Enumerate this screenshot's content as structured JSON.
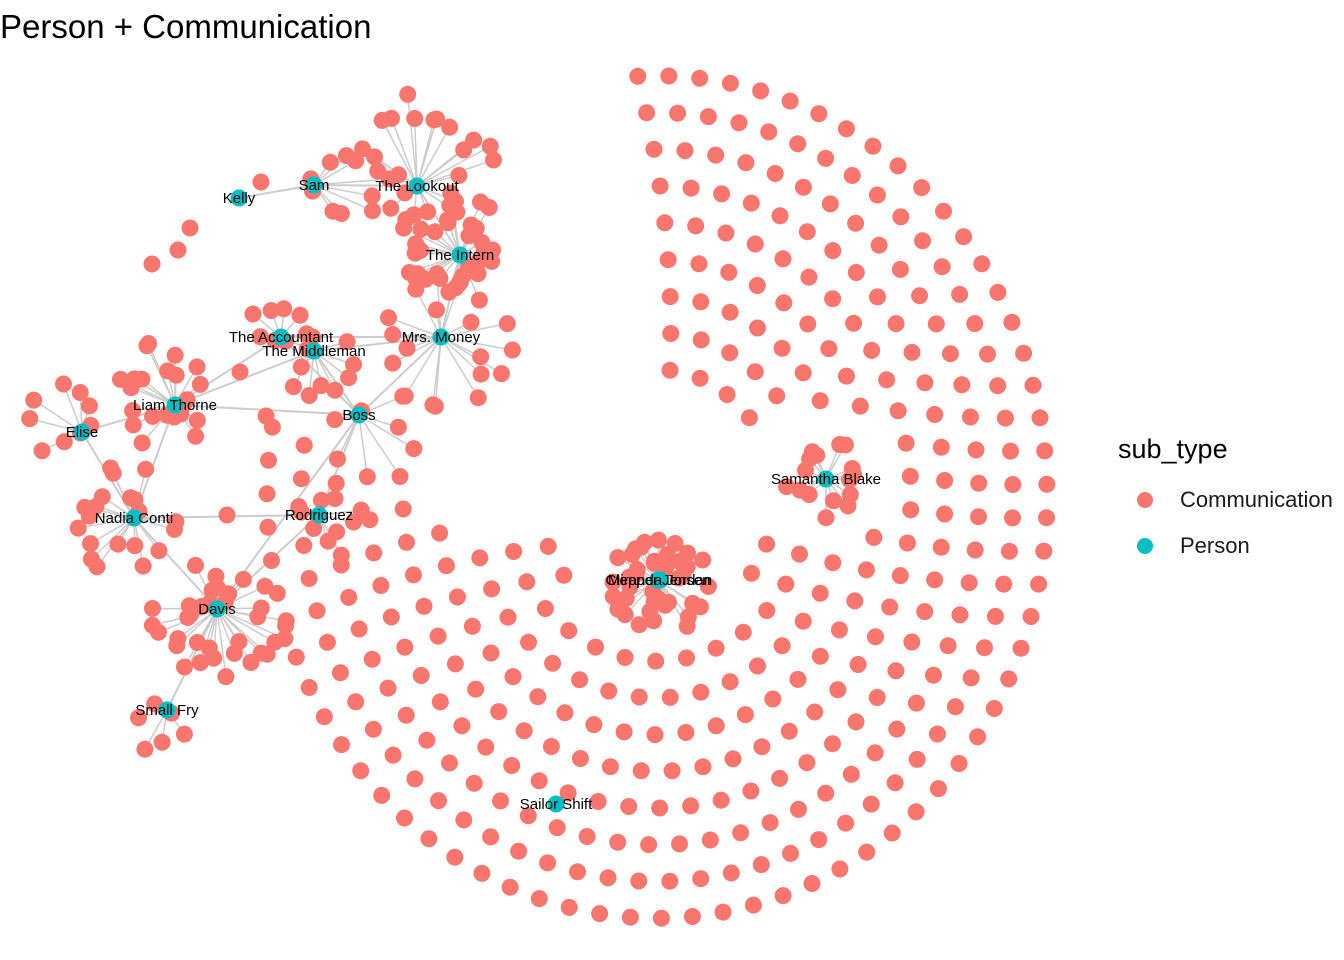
{
  "title": "Person + Communication",
  "legend": {
    "title": "sub_type",
    "items": [
      {
        "label": "Communication",
        "color": "#F8766D"
      },
      {
        "label": "Person",
        "color": "#00BFC4"
      }
    ]
  },
  "person_nodes": [
    "Kelly",
    "Sam",
    "The Lookout",
    "The Intern",
    "The Accountant",
    "The Middleman",
    "Mrs. Money",
    "Liam Thorne",
    "Elise",
    "Boss",
    "Nadia Conti",
    "Rodriguez",
    "Davis",
    "Small Fry",
    "Samantha Blake",
    "Clepper Jensen",
    "Miranda Jordan",
    "Sailor Shift"
  ],
  "person_edges": [
    [
      "Kelly",
      "Sam"
    ],
    [
      "Sam",
      "The Lookout"
    ],
    [
      "The Lookout",
      "The Intern"
    ],
    [
      "The Intern",
      "Mrs. Money"
    ],
    [
      "Mrs. Money",
      "The Middleman"
    ],
    [
      "Mrs. Money",
      "The Accountant"
    ],
    [
      "Mrs. Money",
      "Boss"
    ],
    [
      "The Accountant",
      "The Middleman"
    ],
    [
      "The Accountant",
      "Liam Thorne"
    ],
    [
      "The Middleman",
      "Boss"
    ],
    [
      "Liam Thorne",
      "Boss"
    ],
    [
      "Liam Thorne",
      "Elise"
    ],
    [
      "Liam Thorne",
      "Nadia Conti"
    ],
    [
      "Elise",
      "Nadia Conti"
    ],
    [
      "Nadia Conti",
      "Rodriguez"
    ],
    [
      "Nadia Conti",
      "Davis"
    ],
    [
      "Boss",
      "Rodriguez"
    ],
    [
      "Boss",
      "Davis"
    ],
    [
      "Rodriguez",
      "Davis"
    ],
    [
      "Davis",
      "Small Fry"
    ],
    [
      "Clepper Jensen",
      "Miranda Jordan"
    ],
    [
      "The Accountant",
      "Boss"
    ],
    [
      "Liam Thorne",
      "The Middleman"
    ]
  ],
  "colors": {
    "communication": "#F8766D",
    "person": "#00BFC4",
    "edge": "#cccccc"
  }
}
